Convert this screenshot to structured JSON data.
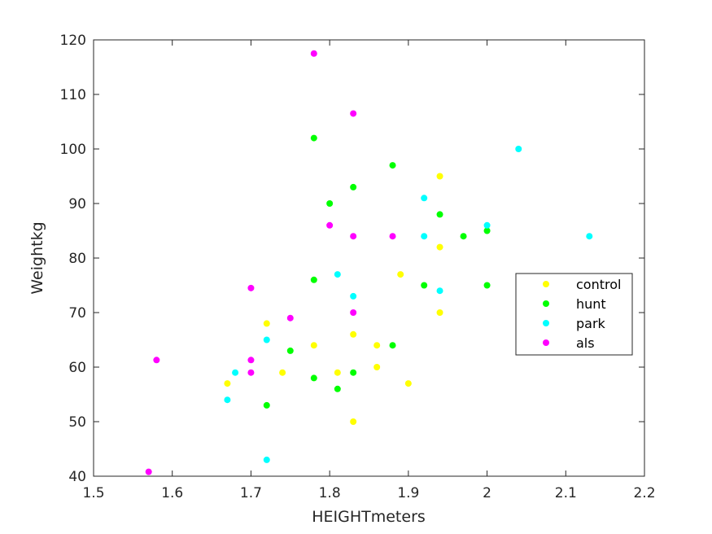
{
  "chart_data": {
    "type": "scatter",
    "title": "",
    "xlabel": "HEIGHTmeters",
    "ylabel": "Weightkg",
    "xlim": [
      1.5,
      2.2
    ],
    "ylim": [
      40,
      120
    ],
    "xticks": [
      "1.5",
      "1.6",
      "1.7",
      "1.8",
      "1.9",
      "2",
      "2.1",
      "2.2"
    ],
    "yticks": [
      "40",
      "50",
      "60",
      "70",
      "80",
      "90",
      "100",
      "110",
      "120"
    ],
    "grid": false,
    "legend_position": "right",
    "series": [
      {
        "name": "control",
        "color": "#ffff00",
        "points": [
          [
            1.94,
            95
          ],
          [
            1.94,
            82
          ],
          [
            1.89,
            77
          ],
          [
            1.94,
            70
          ],
          [
            1.72,
            68
          ],
          [
            1.83,
            66
          ],
          [
            1.78,
            64
          ],
          [
            1.86,
            64
          ],
          [
            1.86,
            60
          ],
          [
            1.74,
            59
          ],
          [
            1.81,
            59
          ],
          [
            1.67,
            57
          ],
          [
            1.9,
            57
          ],
          [
            1.83,
            50
          ]
        ]
      },
      {
        "name": "hunt",
        "color": "#00ff00",
        "points": [
          [
            1.78,
            102
          ],
          [
            1.88,
            97
          ],
          [
            1.83,
            93
          ],
          [
            1.8,
            90
          ],
          [
            1.94,
            88
          ],
          [
            1.97,
            84
          ],
          [
            2.0,
            85
          ],
          [
            1.78,
            76
          ],
          [
            1.92,
            75
          ],
          [
            2.0,
            75
          ],
          [
            1.75,
            63
          ],
          [
            1.88,
            64
          ],
          [
            1.83,
            59
          ],
          [
            1.78,
            58
          ],
          [
            1.81,
            56
          ],
          [
            1.72,
            53
          ]
        ]
      },
      {
        "name": "park",
        "color": "#00ffff",
        "points": [
          [
            2.04,
            100
          ],
          [
            1.92,
            91
          ],
          [
            2.0,
            86
          ],
          [
            1.92,
            84
          ],
          [
            2.13,
            84
          ],
          [
            1.81,
            77
          ],
          [
            1.94,
            74
          ],
          [
            1.83,
            73
          ],
          [
            1.72,
            65
          ],
          [
            1.68,
            59
          ],
          [
            1.67,
            54
          ],
          [
            1.72,
            43
          ]
        ]
      },
      {
        "name": "als",
        "color": "#ff00ff",
        "points": [
          [
            1.78,
            117.5
          ],
          [
            1.83,
            106.5
          ],
          [
            1.8,
            86
          ],
          [
            1.83,
            84
          ],
          [
            1.88,
            84
          ],
          [
            1.7,
            74.5
          ],
          [
            1.83,
            70
          ],
          [
            1.75,
            69
          ],
          [
            1.58,
            61.3
          ],
          [
            1.7,
            61.3
          ],
          [
            1.7,
            59
          ],
          [
            1.57,
            40.8
          ]
        ]
      }
    ]
  }
}
